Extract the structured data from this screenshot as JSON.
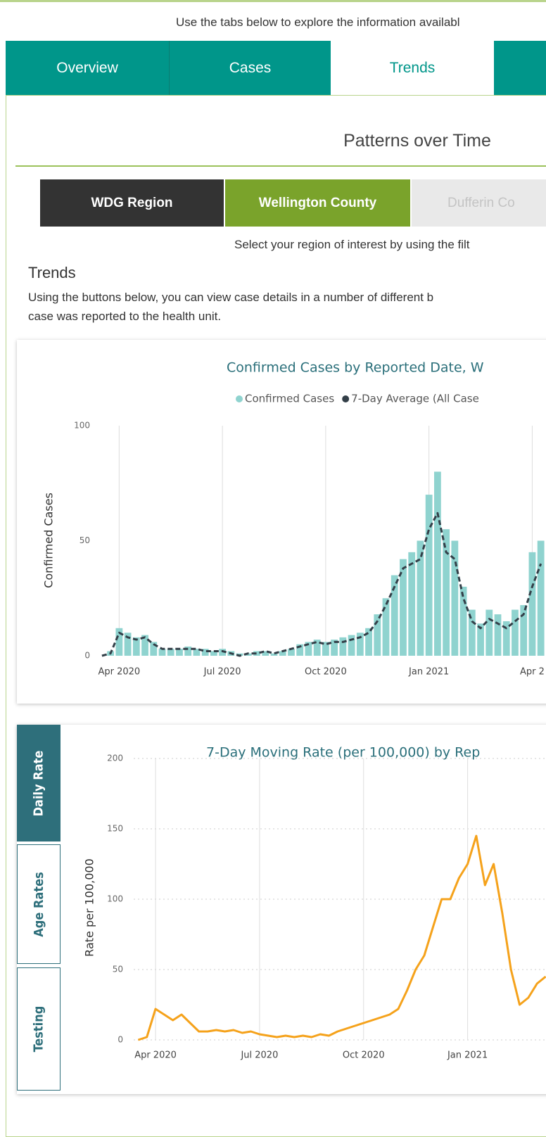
{
  "header": {
    "instruction": "Use the tabs below to explore the information availabl"
  },
  "tabs": [
    "Overview",
    "Cases",
    "Trends"
  ],
  "section_title": "Patterns over Time",
  "region_buttons": [
    "WDG Region",
    "Wellington County",
    "Dufferin Co"
  ],
  "region_note": "Select your region of interest by using the filt",
  "trends": {
    "heading": "Trends",
    "description": [
      "Using the buttons below, you can view case details in a number of different b",
      "case was reported to the health unit."
    ]
  },
  "side_tabs": [
    "Daily Rate",
    "Age Rates",
    "Testing"
  ],
  "chart_data": [
    {
      "type": "bar",
      "title": "Confirmed Cases by Reported Date, W",
      "ylabel": "Confirmed Cases",
      "x": [
        -0.5,
        -0.25,
        0,
        0.25,
        0.5,
        0.75,
        1,
        1.25,
        1.5,
        1.75,
        2,
        2.25,
        2.5,
        2.75,
        3,
        3.25,
        3.5,
        3.75,
        4,
        4.25,
        4.5,
        4.75,
        5,
        5.25,
        5.5,
        5.75,
        6,
        6.25,
        6.5,
        6.75,
        7,
        7.25,
        7.5,
        7.75,
        8,
        8.25,
        8.5,
        8.75,
        9,
        9.25,
        9.5,
        9.75,
        10,
        10.25,
        10.5,
        10.75,
        11,
        11.25,
        11.5,
        11.75,
        12,
        12.25
      ],
      "series": [
        {
          "name": "Confirmed Cases",
          "type": "bar",
          "color": "#8fd3cf",
          "values": [
            0,
            2,
            12,
            10,
            8,
            9,
            6,
            3,
            3,
            3,
            4,
            3,
            3,
            2,
            3,
            2,
            1,
            1,
            2,
            2,
            1,
            2,
            3,
            5,
            6,
            7,
            6,
            7,
            8,
            9,
            10,
            12,
            18,
            25,
            35,
            42,
            45,
            50,
            70,
            80,
            55,
            50,
            30,
            20,
            14,
            20,
            18,
            15,
            20,
            22,
            45,
            50
          ]
        },
        {
          "name": "7-Day Average (All Case",
          "type": "line",
          "color": "#333f48",
          "values": [
            0,
            1,
            10,
            8,
            7,
            8,
            5,
            3,
            3,
            3,
            3,
            3,
            2,
            2,
            2,
            1,
            0,
            1,
            1,
            2,
            1,
            2,
            3,
            4,
            5,
            6,
            5,
            6,
            6,
            7,
            8,
            10,
            15,
            22,
            30,
            38,
            40,
            42,
            55,
            62,
            45,
            42,
            25,
            15,
            12,
            16,
            14,
            12,
            15,
            18,
            30,
            40
          ]
        }
      ],
      "xlim": [
        -0.6,
        12.4
      ],
      "ylim": [
        0,
        100
      ],
      "yticks": [
        0,
        50,
        100
      ],
      "xticks": [
        {
          "value": 0,
          "label": "Apr 2020"
        },
        {
          "value": 3,
          "label": "Jul 2020"
        },
        {
          "value": 6,
          "label": "Oct 2020"
        },
        {
          "value": 9,
          "label": "Jan 2021"
        },
        {
          "value": 12,
          "label": "Apr 2"
        }
      ],
      "grid": "x"
    },
    {
      "type": "line",
      "title": "7-Day Moving Rate (per 100,000) by Rep",
      "ylabel": "Rate per 100,000",
      "x": [
        -0.5,
        -0.25,
        0,
        0.25,
        0.5,
        0.75,
        1,
        1.25,
        1.5,
        1.75,
        2,
        2.25,
        2.5,
        2.75,
        3,
        3.25,
        3.5,
        3.75,
        4,
        4.25,
        4.5,
        4.75,
        5,
        5.25,
        5.5,
        5.75,
        6,
        6.25,
        6.5,
        6.75,
        7,
        7.25,
        7.5,
        7.75,
        8,
        8.25,
        8.5,
        8.75,
        9,
        9.25,
        9.5,
        9.75,
        10,
        10.25,
        10.5,
        10.75,
        11,
        11.25
      ],
      "series": [
        {
          "color": "#f5a21b",
          "values": [
            0,
            2,
            22,
            18,
            14,
            18,
            12,
            6,
            6,
            7,
            6,
            7,
            5,
            6,
            4,
            3,
            2,
            3,
            2,
            3,
            2,
            4,
            3,
            6,
            8,
            10,
            12,
            14,
            16,
            18,
            22,
            35,
            50,
            60,
            80,
            100,
            100,
            115,
            125,
            145,
            110,
            125,
            90,
            50,
            25,
            30,
            40,
            45
          ]
        }
      ],
      "xlim": [
        -0.63,
        11.26
      ],
      "ylim": [
        0,
        200
      ],
      "yticks": [
        0,
        50,
        100,
        150,
        200
      ],
      "xticks": [
        {
          "value": 0,
          "label": "Apr 2020"
        },
        {
          "value": 3,
          "label": "Jul 2020"
        },
        {
          "value": 6,
          "label": "Oct 2020"
        },
        {
          "value": 9,
          "label": "Jan 2021"
        }
      ],
      "grid": "both"
    }
  ]
}
